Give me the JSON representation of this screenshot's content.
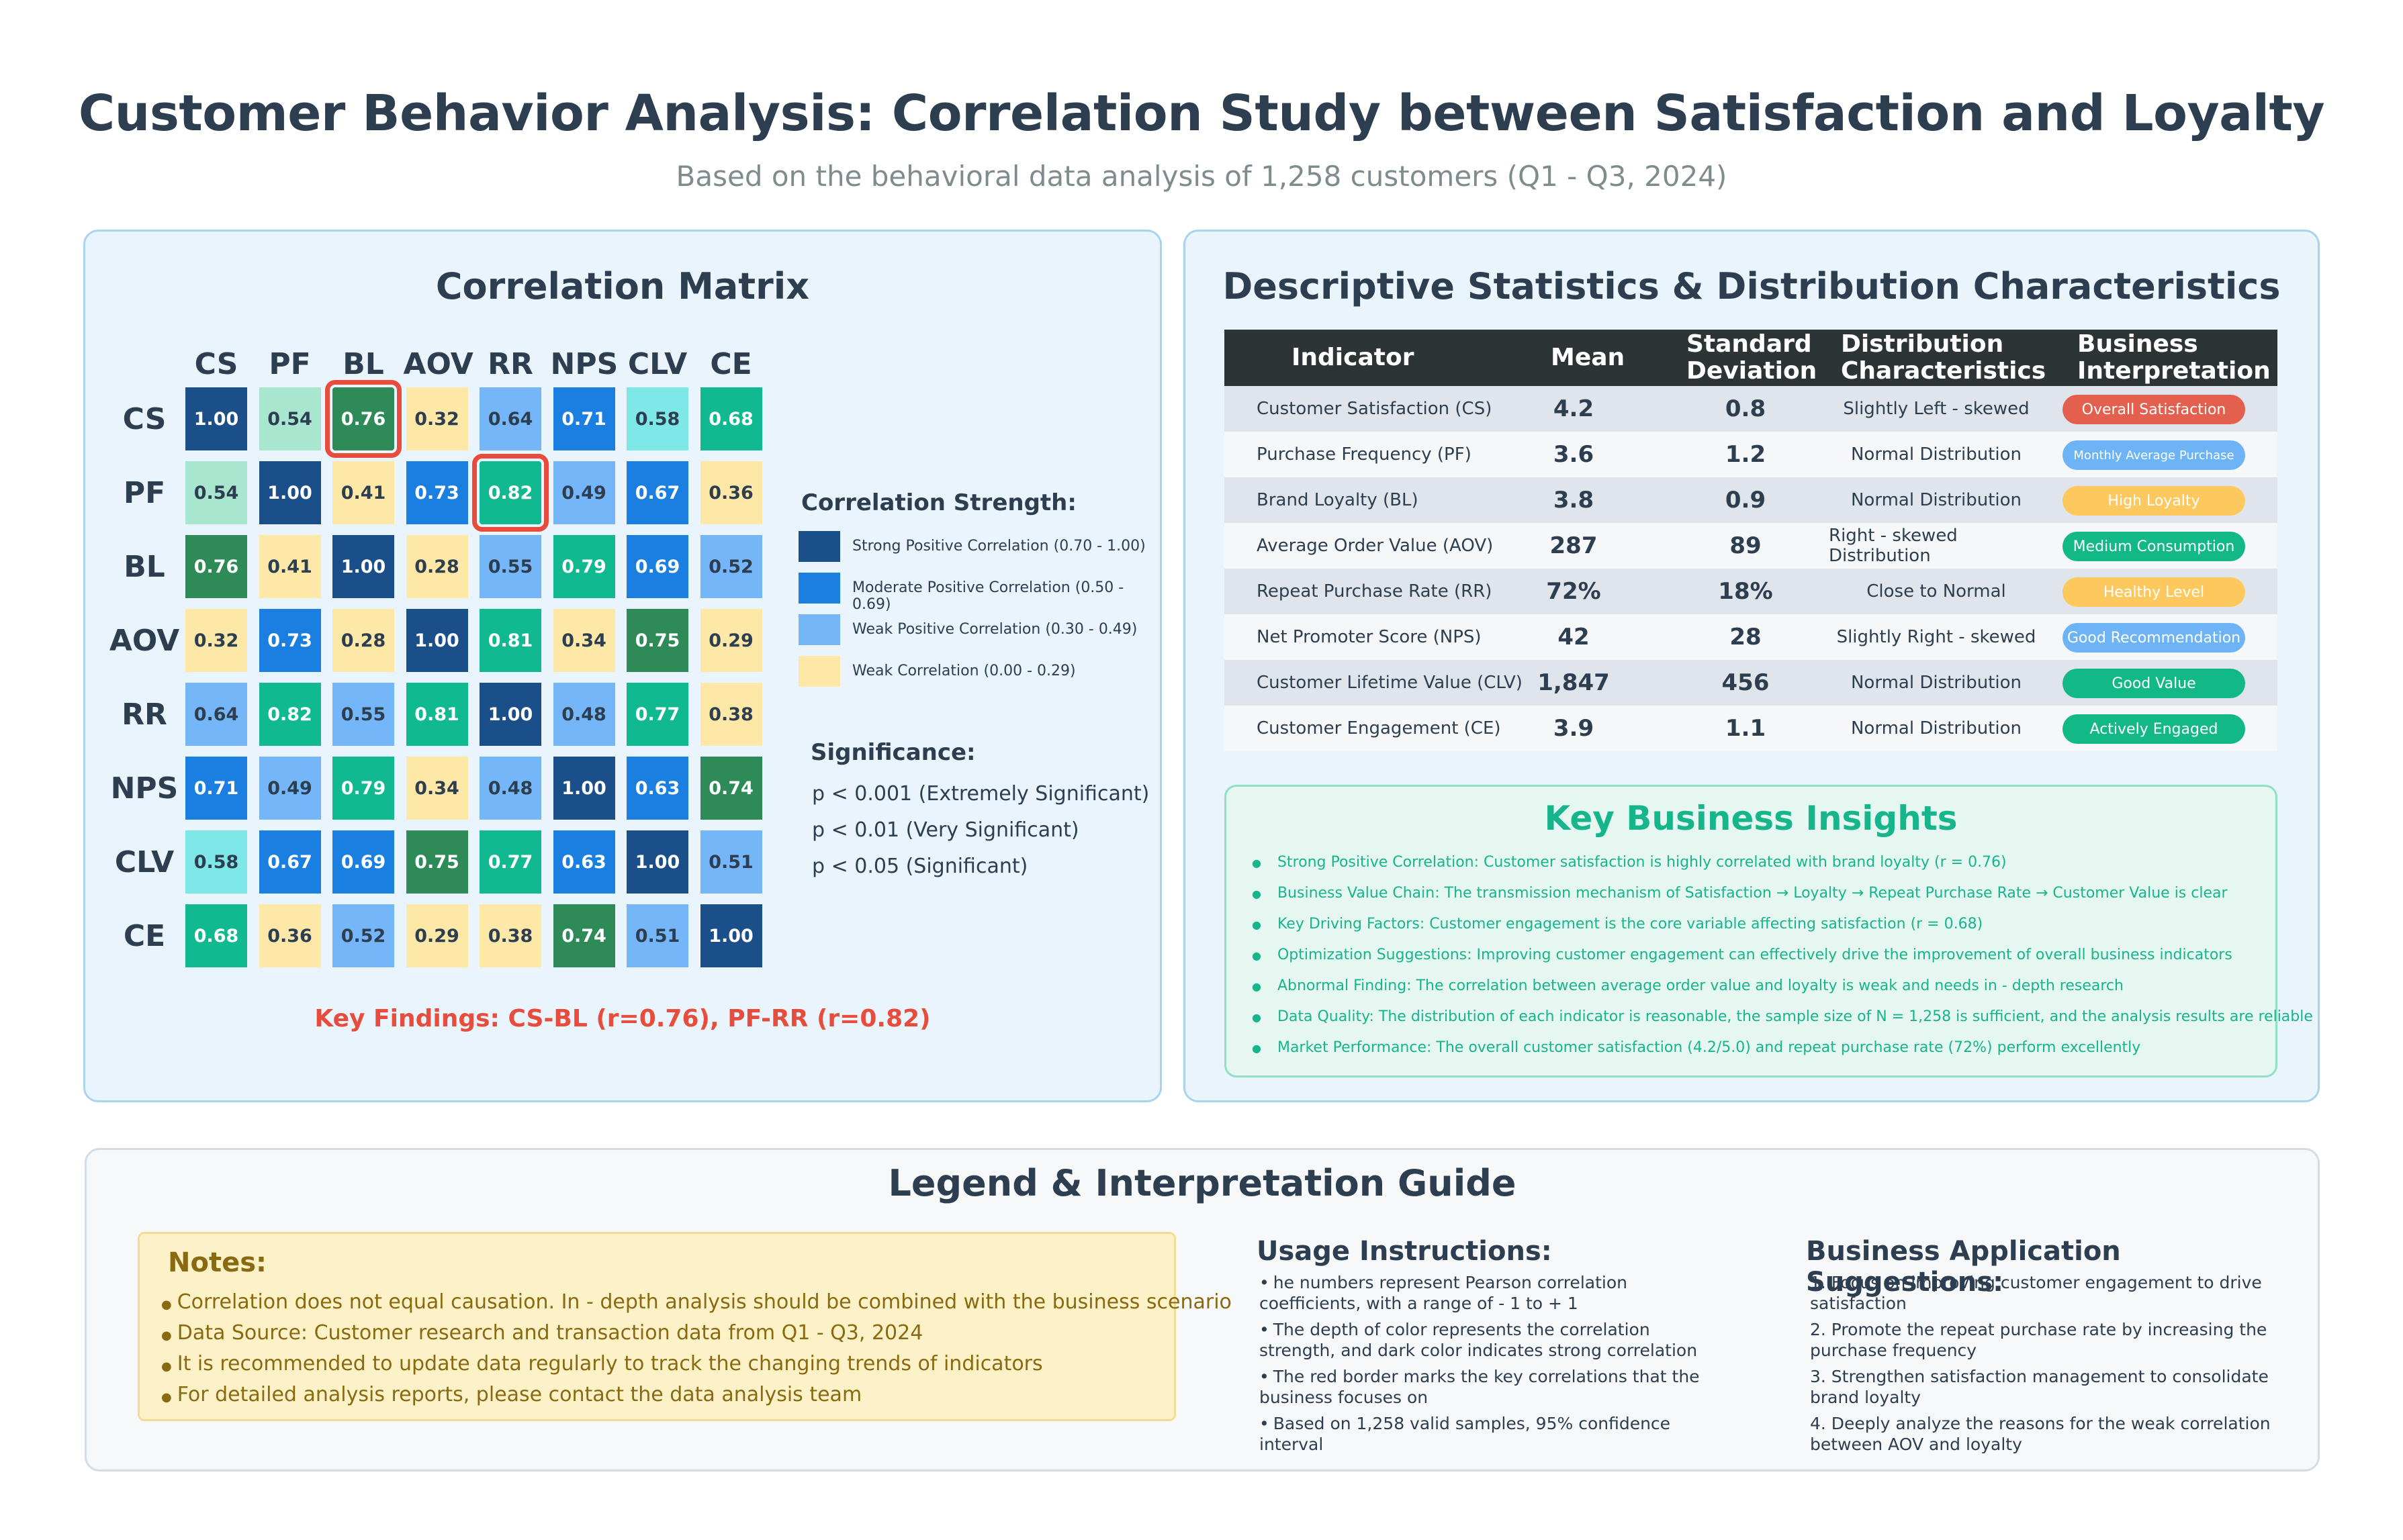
{
  "header": {
    "title": "Customer Behavior Analysis: Correlation Study between Satisfaction and Loyalty",
    "subtitle": "Based on the behavioral data analysis of 1,258 customers (Q1 - Q3, 2024)"
  },
  "correlation": {
    "title": "Correlation Matrix",
    "strength_title": "Correlation Strength:",
    "legend": [
      {
        "label": "Strong Positive Correlation (0.70 - 1.00)",
        "color": "#1b4f8a"
      },
      {
        "label": "Moderate Positive Correlation (0.50 - 0.69)",
        "color": "#1a7fe0"
      },
      {
        "label": "Weak Positive Correlation (0.30 - 0.49)",
        "color": "#74b6f8"
      },
      {
        "label": "Weak Correlation (0.00 - 0.29)",
        "color": "#fde8a8"
      }
    ],
    "significance_title": "Significance:",
    "significance": [
      "p < 0.001 (Extremely Significant)",
      "p < 0.01 (Very Significant)",
      "p < 0.05 (Significant)"
    ],
    "key_findings": "Key Findings: CS-BL (r=0.76), PF-RR (r=0.82)"
  },
  "chart_data": {
    "type": "heatmap",
    "title": "Correlation Matrix",
    "labels": [
      "CS",
      "PF",
      "BL",
      "AOV",
      "RR",
      "NPS",
      "CLV",
      "CE"
    ],
    "values": [
      [
        1.0,
        0.54,
        0.76,
        0.32,
        0.64,
        0.71,
        0.58,
        0.68
      ],
      [
        0.54,
        1.0,
        0.41,
        0.73,
        0.82,
        0.49,
        0.67,
        0.36
      ],
      [
        0.76,
        0.41,
        1.0,
        0.28,
        0.55,
        0.79,
        0.69,
        0.52
      ],
      [
        0.32,
        0.73,
        0.28,
        1.0,
        0.81,
        0.34,
        0.75,
        0.29
      ],
      [
        0.64,
        0.82,
        0.55,
        0.81,
        1.0,
        0.48,
        0.77,
        0.38
      ],
      [
        0.71,
        0.49,
        0.79,
        0.34,
        0.48,
        1.0,
        0.63,
        0.74
      ],
      [
        0.58,
        0.67,
        0.69,
        0.75,
        0.77,
        0.63,
        1.0,
        0.51
      ],
      [
        0.68,
        0.36,
        0.52,
        0.29,
        0.38,
        0.74,
        0.51,
        1.0
      ]
    ],
    "cell_colors": [
      [
        "#1b4f8a",
        "#a8e6cf",
        "#2e8b57",
        "#fde8a8",
        "#74b6f8",
        "#1a7fe0",
        "#7ee8e8",
        "#10b98f"
      ],
      [
        "#a8e6cf",
        "#1b4f8a",
        "#fde8a8",
        "#1a7fe0",
        "#10b98f",
        "#74b6f8",
        "#1a7fe0",
        "#fde8a8"
      ],
      [
        "#2e8b57",
        "#fde8a8",
        "#1b4f8a",
        "#fde8a8",
        "#74b6f8",
        "#10b98f",
        "#1a7fe0",
        "#74b6f8"
      ],
      [
        "#fde8a8",
        "#1a7fe0",
        "#fde8a8",
        "#1b4f8a",
        "#10b98f",
        "#fde8a8",
        "#2e8b57",
        "#fde8a8"
      ],
      [
        "#74b6f8",
        "#10b98f",
        "#74b6f8",
        "#10b98f",
        "#1b4f8a",
        "#74b6f8",
        "#10b98f",
        "#fde8a8"
      ],
      [
        "#1a7fe0",
        "#74b6f8",
        "#10b98f",
        "#fde8a8",
        "#74b6f8",
        "#1b4f8a",
        "#1a7fe0",
        "#2e8b57"
      ],
      [
        "#7ee8e8",
        "#1a7fe0",
        "#1a7fe0",
        "#2e8b57",
        "#10b98f",
        "#1a7fe0",
        "#1b4f8a",
        "#74b6f8"
      ],
      [
        "#10b98f",
        "#fde8a8",
        "#74b6f8",
        "#fde8a8",
        "#fde8a8",
        "#2e8b57",
        "#74b6f8",
        "#1b4f8a"
      ]
    ],
    "highlighted": [
      [
        0,
        2
      ],
      [
        1,
        4
      ]
    ]
  },
  "stats": {
    "title": "Descriptive Statistics & Distribution Characteristics",
    "headers": [
      "Indicator",
      "Mean",
      "Standard Deviation",
      "Distribution Characteristics",
      "Business Interpretation"
    ],
    "rows": [
      {
        "indicator": "Customer Satisfaction (CS)",
        "mean": "4.2",
        "sd": "0.8",
        "dist": "Slightly Left - skewed",
        "interp": "Overall Satisfaction",
        "color": "#e4604e"
      },
      {
        "indicator": "Purchase Frequency (PF)",
        "mean": "3.6",
        "sd": "1.2",
        "dist": "Normal Distribution",
        "interp": "Monthly Average Purchase",
        "color": "#6cb4f5"
      },
      {
        "indicator": "Brand Loyalty (BL)",
        "mean": "3.8",
        "sd": "0.9",
        "dist": "Normal Distribution",
        "interp": "High Loyalty",
        "color": "#fdc95e"
      },
      {
        "indicator": "Average Order Value (AOV)",
        "mean": "287",
        "sd": "89",
        "dist": "Right - skewed Distribution",
        "interp": "Medium Consumption",
        "color": "#12b886"
      },
      {
        "indicator": "Repeat Purchase Rate (RR)",
        "mean": "72%",
        "sd": "18%",
        "dist": "Close to Normal",
        "interp": "Healthy Level",
        "color": "#fdc95e"
      },
      {
        "indicator": "Net Promoter Score (NPS)",
        "mean": "42",
        "sd": "28",
        "dist": "Slightly Right - skewed",
        "interp": "Good Recommendation",
        "color": "#6cb4f5"
      },
      {
        "indicator": "Customer Lifetime Value (CLV)",
        "mean": "1,847",
        "sd": "456",
        "dist": "Normal Distribution",
        "interp": "Good Value",
        "color": "#12b886"
      },
      {
        "indicator": "Customer Engagement (CE)",
        "mean": "3.9",
        "sd": "1.1",
        "dist": "Normal Distribution",
        "interp": "Actively Engaged",
        "color": "#12b886"
      }
    ]
  },
  "insights": {
    "title": "Key Business Insights",
    "items": [
      "Strong Positive Correlation: Customer satisfaction is highly correlated with brand loyalty (r = 0.76)",
      "Business Value Chain: The transmission mechanism of Satisfaction → Loyalty → Repeat Purchase Rate → Customer Value is clear",
      "Key Driving Factors: Customer engagement is the core variable affecting satisfaction (r = 0.68)",
      "Optimization Suggestions: Improving customer engagement can effectively drive the improvement of overall business indicators",
      "Abnormal Finding: The correlation between average order value and loyalty is weak and needs in - depth research",
      "Data Quality: The distribution of each indicator is reasonable, the sample size of N = 1,258 is sufficient, and the analysis results are reliable",
      "Market Performance: The overall customer satisfaction (4.2/5.0) and repeat purchase rate (72%) perform excellently"
    ]
  },
  "legend_guide": {
    "title": "Legend & Interpretation Guide",
    "notes_title": "Notes:",
    "notes": [
      "Correlation does not equal causation. In - depth analysis should be combined with the business scenario",
      "Data Source: Customer research and transaction data from Q1 - Q3, 2024",
      "It is recommended to update data regularly to track the changing trends of indicators",
      "For detailed analysis reports, please contact the data analysis team"
    ],
    "usage_title": "Usage Instructions:",
    "usage": [
      "he numbers represent Pearson correlation coefficients, with a range of - 1 to + 1",
      "The depth of color represents the correlation strength, and dark color indicates strong correlation",
      "The red border marks the key correlations that the business focuses on",
      "Based on 1,258 valid samples, 95% confidence interval"
    ],
    "suggest_title": "Business Application Suggestions:",
    "suggest": [
      "1. Focus on improving customer engagement to drive satisfaction",
      "2. Promote the repeat purchase rate by increasing the purchase frequency",
      "3. Strengthen satisfaction management to consolidate brand loyalty",
      "4. Deeply analyze the reasons for the weak correlation between AOV and loyalty"
    ]
  }
}
